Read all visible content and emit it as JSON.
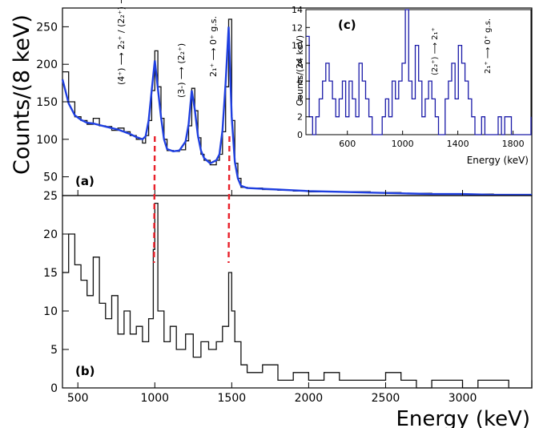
{
  "chart_data": [
    {
      "panel": "(a)",
      "type": "line",
      "ylabel": "Counts/(8 keV)",
      "xlim": [
        400,
        3450
      ],
      "ylim": [
        25,
        275
      ],
      "x_ticks": [
        500,
        1000,
        1500,
        2000,
        2500,
        3000
      ],
      "y_ticks": [
        25,
        50,
        100,
        150,
        200,
        250
      ],
      "y_tick_labels": [
        "25",
        "50",
        "100",
        "150",
        "200",
        "250"
      ],
      "peak_labels": [
        {
          "energy": 1000,
          "text": "(4⁺) ⟶ 2₂⁺ /  (2₂⁺) ⟶ 2₁⁺"
        },
        {
          "energy": 1255,
          "text": "(3-) ⟶ (2₂⁺)"
        },
        {
          "energy": 1485,
          "text": "2₁⁺ ⟶ 0⁺ g.s."
        }
      ],
      "series": [
        {
          "style": "black histogram",
          "x": [
            400,
            440,
            480,
            520,
            560,
            600,
            640,
            680,
            720,
            760,
            800,
            840,
            880,
            920,
            940,
            960,
            980,
            1000,
            1020,
            1040,
            1060,
            1080,
            1120,
            1160,
            1200,
            1220,
            1240,
            1260,
            1280,
            1300,
            1320,
            1360,
            1400,
            1420,
            1440,
            1460,
            1480,
            1500,
            1520,
            1540,
            1560,
            1600,
            1700,
            1800,
            1900,
            2000,
            2200,
            2400,
            2600,
            2800,
            3000,
            3200,
            3450
          ],
          "y": [
            190,
            150,
            130,
            125,
            120,
            128,
            118,
            117,
            112,
            115,
            110,
            105,
            100,
            95,
            105,
            125,
            165,
            218,
            170,
            128,
            100,
            85,
            84,
            86,
            98,
            118,
            168,
            138,
            102,
            80,
            72,
            66,
            72,
            80,
            110,
            170,
            260,
            125,
            68,
            48,
            36,
            35,
            33,
            32,
            31,
            30,
            30,
            29,
            28,
            27,
            27,
            26,
            26
          ]
        },
        {
          "style": "blue fit",
          "x": [
            400,
            440,
            480,
            520,
            560,
            600,
            640,
            680,
            720,
            760,
            800,
            840,
            880,
            920,
            940,
            960,
            980,
            1000,
            1020,
            1040,
            1060,
            1080,
            1120,
            1160,
            1200,
            1220,
            1240,
            1260,
            1280,
            1300,
            1320,
            1360,
            1400,
            1420,
            1440,
            1460,
            1480,
            1500,
            1520,
            1540,
            1560,
            1600,
            1700,
            1800,
            1900,
            2000,
            2200,
            2400,
            2600,
            2800,
            3000,
            3200,
            3450
          ],
          "y": [
            180,
            148,
            132,
            126,
            122,
            121,
            119,
            117,
            115,
            113,
            110,
            107,
            103,
            100,
            104,
            125,
            165,
            205,
            168,
            130,
            100,
            87,
            84,
            85,
            97,
            120,
            165,
            140,
            105,
            85,
            75,
            68,
            72,
            80,
            112,
            175,
            250,
            130,
            70,
            48,
            38,
            35,
            34,
            33,
            32,
            31,
            30,
            29,
            28,
            27,
            27,
            26,
            26
          ]
        }
      ]
    },
    {
      "panel": "(b)",
      "type": "line",
      "style": "black histogram",
      "xlabel": "Energy (keV)",
      "xlim": [
        400,
        3450
      ],
      "ylim": [
        0,
        25
      ],
      "x_ticks": [
        500,
        1000,
        1500,
        2000,
        2500,
        3000
      ],
      "y_ticks": [
        0,
        5,
        10,
        15,
        20,
        25
      ],
      "y_tick_labels": [
        "0",
        "5",
        "10",
        "15",
        "20",
        "25"
      ],
      "x": [
        400,
        440,
        480,
        520,
        560,
        600,
        640,
        680,
        720,
        760,
        800,
        840,
        880,
        920,
        960,
        990,
        1000,
        1020,
        1060,
        1100,
        1140,
        1200,
        1250,
        1300,
        1350,
        1400,
        1440,
        1480,
        1500,
        1520,
        1560,
        1600,
        1650,
        1700,
        1800,
        1900,
        2000,
        2100,
        2200,
        2300,
        2400,
        2500,
        2600,
        2700,
        2800,
        2900,
        3000,
        3100,
        3200,
        3300,
        3450
      ],
      "y": [
        15,
        20,
        16,
        14,
        12,
        17,
        11,
        9,
        12,
        7,
        10,
        7,
        8,
        6,
        9,
        18,
        24,
        10,
        6,
        8,
        5,
        7,
        4,
        6,
        5,
        6,
        8,
        15,
        10,
        6,
        3,
        2,
        2,
        3,
        1,
        2,
        1,
        2,
        1,
        1,
        1,
        2,
        1,
        0,
        1,
        1,
        0,
        1,
        1,
        0,
        1
      ]
    },
    {
      "panel": "(c)",
      "type": "line",
      "style": "blue histogram",
      "xlabel": "Energy (keV)",
      "ylabel": "Counts/(24 keV)",
      "xlim": [
        300,
        1930
      ],
      "ylim": [
        0,
        14
      ],
      "x_ticks": [
        600,
        1000,
        1400,
        1800
      ],
      "y_ticks": [
        0,
        2,
        4,
        6,
        8,
        10,
        12,
        14
      ],
      "y_tick_labels": [
        "0",
        "2",
        "4",
        "6",
        "8",
        "10",
        "12",
        "14"
      ],
      "peak_labels": [
        {
          "energy": 1150,
          "text": "(2₂⁺) ⟶ 2₁⁺"
        },
        {
          "energy": 1480,
          "text": "2₁⁺ ⟶ 0⁺ g.s."
        }
      ],
      "x": [
        300,
        324,
        348,
        372,
        396,
        420,
        444,
        468,
        492,
        516,
        540,
        564,
        588,
        612,
        636,
        660,
        684,
        708,
        732,
        756,
        780,
        804,
        828,
        852,
        876,
        900,
        924,
        948,
        972,
        996,
        1020,
        1044,
        1068,
        1092,
        1116,
        1140,
        1164,
        1188,
        1212,
        1236,
        1260,
        1284,
        1308,
        1332,
        1356,
        1380,
        1404,
        1428,
        1452,
        1476,
        1500,
        1524,
        1548,
        1572,
        1596,
        1620,
        1644,
        1668,
        1692,
        1716,
        1740,
        1764,
        1788,
        1812,
        1836,
        1860,
        1884,
        1908,
        1930
      ],
      "y": [
        11,
        2,
        0,
        2,
        4,
        6,
        8,
        6,
        4,
        2,
        4,
        6,
        2,
        6,
        4,
        2,
        8,
        6,
        4,
        2,
        0,
        0,
        0,
        2,
        4,
        2,
        6,
        4,
        6,
        8,
        14,
        6,
        4,
        10,
        6,
        2,
        4,
        6,
        4,
        2,
        0,
        0,
        4,
        6,
        8,
        4,
        10,
        8,
        6,
        4,
        2,
        0,
        0,
        2,
        0,
        0,
        0,
        0,
        2,
        0,
        2,
        2,
        0,
        0,
        0,
        0,
        0,
        0,
        2
      ]
    }
  ],
  "labels": {
    "panel_a": "(a)",
    "panel_b": "(b)",
    "panel_c": "(c)",
    "main_ylabel": "Counts/(8 keV)",
    "main_xlabel": "Energy (keV)",
    "inset_ylabel": "Counts/(24 keV)",
    "inset_xlabel": "Energy (keV)",
    "x_tick_labels": [
      "500",
      "1000",
      "1500",
      "2000",
      "2500",
      "3000"
    ],
    "inset_x_tick_labels": [
      "600",
      "1000",
      "1400",
      "1800"
    ]
  },
  "colors": {
    "data": "#111111",
    "fit": "#1f3fe0",
    "inset_hist": "#1a1aa8",
    "marker": "#e8202a",
    "axis": "#000000"
  }
}
